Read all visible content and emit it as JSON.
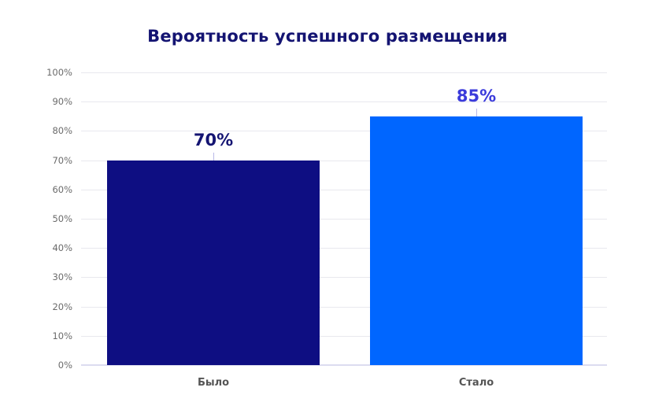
{
  "chart_data": {
    "type": "bar",
    "title": "Вероятность успешного размещения",
    "categories": [
      "Было",
      "Стало"
    ],
    "values": [
      70,
      85
    ],
    "value_labels": [
      "70%",
      "85%"
    ],
    "colors": [
      "#0e0e82",
      "#0066ff"
    ],
    "value_label_colors": [
      "#141472",
      "#3b3bdb"
    ],
    "xlabel": "",
    "ylabel": "",
    "ylim": [
      0,
      100
    ],
    "yticks": [
      "0%",
      "10%",
      "20%",
      "30%",
      "40%",
      "50%",
      "60%",
      "70%",
      "80%",
      "90%",
      "100%"
    ],
    "grid": true,
    "legend": false
  }
}
